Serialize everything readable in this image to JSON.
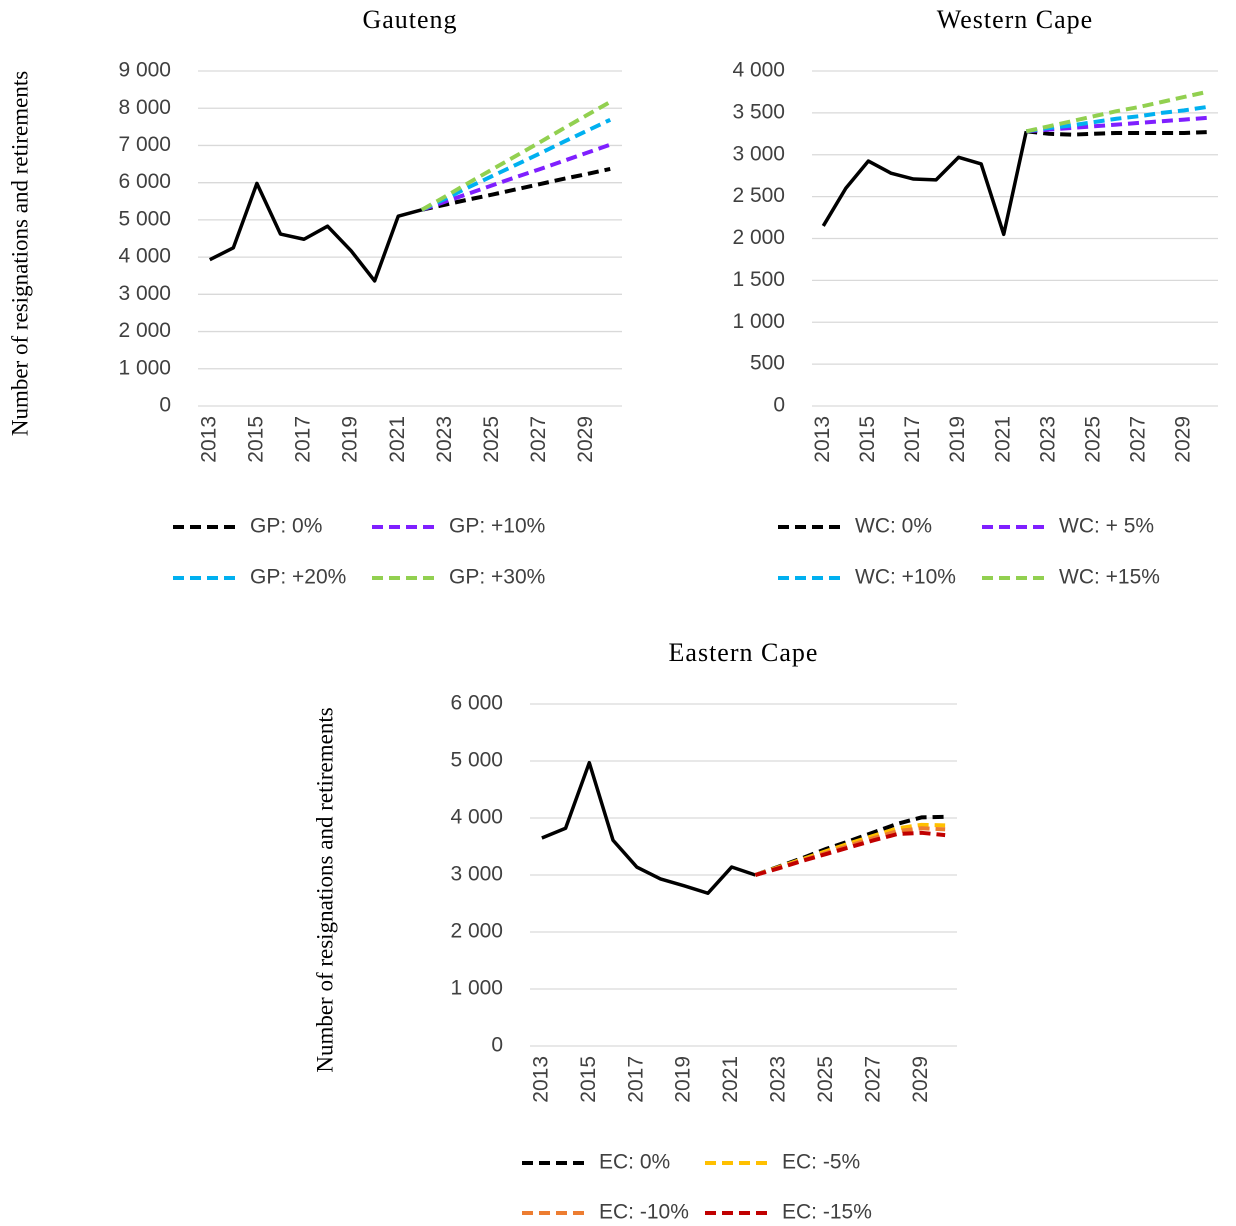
{
  "chart_data": [
    {
      "type": "line",
      "title": "Gauteng",
      "ylabel": "Number of resignations and retirements",
      "categories": [
        "2013",
        null,
        "2015",
        null,
        "2017",
        null,
        "2019",
        null,
        "2021",
        null,
        "2023",
        null,
        "2025",
        null,
        "2027",
        null,
        "2029",
        null
      ],
      "ylim": [
        0,
        9000
      ],
      "yticks": [
        0,
        {
          "value": 1000,
          "label": "1 000"
        },
        {
          "value": 2000,
          "label": "2 000"
        },
        {
          "value": 3000,
          "label": "3 000"
        },
        {
          "value": 4000,
          "label": "4 000"
        },
        {
          "value": 5000,
          "label": "5 000"
        },
        {
          "value": 6000,
          "label": "6 000"
        },
        {
          "value": 7000,
          "label": "7 000"
        },
        {
          "value": 8000,
          "label": "8 000"
        },
        {
          "value": 9000,
          "label": "9 000"
        }
      ],
      "grid": true,
      "series": [
        {
          "color": "#000000",
          "values": [
            3930,
            4250,
            5980,
            4620,
            4480,
            4830,
            4170,
            3360,
            5100,
            5270,
            null,
            null,
            null,
            null,
            null,
            null,
            null,
            null
          ]
        },
        {
          "name": "GP: 0%",
          "color": "#000000",
          "values": [
            null,
            null,
            null,
            null,
            null,
            null,
            null,
            null,
            null,
            5270,
            5410,
            5550,
            5680,
            5820,
            5960,
            6100,
            6230,
            6370
          ]
        },
        {
          "name": "GP: +10%",
          "color": "#7f1fff",
          "values": [
            null,
            null,
            null,
            null,
            null,
            null,
            null,
            null,
            null,
            5270,
            5490,
            5710,
            5930,
            6150,
            6360,
            6580,
            6800,
            7020
          ]
        },
        {
          "name": "GP: +20%",
          "color": "#00b0f0",
          "values": [
            null,
            null,
            null,
            null,
            null,
            null,
            null,
            null,
            null,
            5270,
            5570,
            5880,
            6180,
            6480,
            6780,
            7090,
            7390,
            7690
          ]
        },
        {
          "name": "GP: +30%",
          "color": "#92d050",
          "values": [
            null,
            null,
            null,
            null,
            null,
            null,
            null,
            null,
            null,
            5270,
            5630,
            6000,
            6360,
            6720,
            7080,
            7450,
            7810,
            8170
          ]
        }
      ]
    },
    {
      "type": "line",
      "title": "Western Cape",
      "categories": [
        "2013",
        null,
        "2015",
        null,
        "2017",
        null,
        "2019",
        null,
        "2021",
        null,
        "2023",
        null,
        "2025",
        null,
        "2027",
        null,
        "2029",
        null
      ],
      "ylim": [
        0,
        4000
      ],
      "yticks": [
        0,
        500,
        {
          "value": 1000,
          "label": "1 000"
        },
        {
          "value": 1500,
          "label": "1 500"
        },
        {
          "value": 2000,
          "label": "2 000"
        },
        {
          "value": 2500,
          "label": "2 500"
        },
        {
          "value": 3000,
          "label": "3 000"
        },
        {
          "value": 3500,
          "label": "3 500"
        },
        {
          "value": 4000,
          "label": "4 000"
        }
      ],
      "grid": true,
      "series": [
        {
          "color": "#000000",
          "values": [
            2150,
            2600,
            2925,
            2780,
            2710,
            2700,
            2970,
            2890,
            2050,
            3280,
            null,
            null,
            null,
            null,
            null,
            null,
            null,
            null
          ]
        },
        {
          "name": "WC: 0%",
          "color": "#000000",
          "values": [
            null,
            null,
            null,
            null,
            null,
            null,
            null,
            null,
            null,
            3280,
            3250,
            3240,
            3250,
            3260,
            3260,
            3260,
            3260,
            3270
          ]
        },
        {
          "name": "WC: + 5%",
          "color": "#7f1fff",
          "values": [
            null,
            null,
            null,
            null,
            null,
            null,
            null,
            null,
            null,
            3280,
            3300,
            3320,
            3340,
            3360,
            3380,
            3400,
            3420,
            3440
          ]
        },
        {
          "name": "WC: +10%",
          "color": "#00b0f0",
          "values": [
            null,
            null,
            null,
            null,
            null,
            null,
            null,
            null,
            null,
            3280,
            3320,
            3350,
            3390,
            3430,
            3460,
            3500,
            3530,
            3570
          ]
        },
        {
          "name": "WC: +15%",
          "color": "#92d050",
          "values": [
            null,
            null,
            null,
            null,
            null,
            null,
            null,
            null,
            null,
            3280,
            3340,
            3400,
            3460,
            3520,
            3570,
            3630,
            3690,
            3750
          ]
        }
      ]
    },
    {
      "type": "line",
      "title": "Eastern Cape",
      "ylabel": "Number of resignations and retirements",
      "categories": [
        "2013",
        null,
        "2015",
        null,
        "2017",
        null,
        "2019",
        null,
        "2021",
        null,
        "2023",
        null,
        "2025",
        null,
        "2027",
        null,
        "2029",
        null
      ],
      "ylim": [
        0,
        6000
      ],
      "yticks": [
        0,
        {
          "value": 1000,
          "label": "1 000"
        },
        {
          "value": 2000,
          "label": "2 000"
        },
        {
          "value": 3000,
          "label": "3 000"
        },
        {
          "value": 4000,
          "label": "4 000"
        },
        {
          "value": 5000,
          "label": "5 000"
        },
        {
          "value": 6000,
          "label": "6 000"
        }
      ],
      "grid": true,
      "series": [
        {
          "color": "#000000",
          "values": [
            3650,
            3820,
            4970,
            3610,
            3140,
            2930,
            2810,
            2680,
            3140,
            3000,
            null,
            null,
            null,
            null,
            null,
            null,
            null,
            null
          ]
        },
        {
          "name": "EC: 0%",
          "color": "#000000",
          "values": [
            null,
            null,
            null,
            null,
            null,
            null,
            null,
            null,
            null,
            3000,
            3150,
            3300,
            3460,
            3600,
            3750,
            3900,
            4010,
            4020
          ]
        },
        {
          "name": "EC: -5%",
          "color": "#ffc000",
          "values": [
            null,
            null,
            null,
            null,
            null,
            null,
            null,
            null,
            null,
            3000,
            3140,
            3280,
            3420,
            3560,
            3690,
            3820,
            3880,
            3870
          ]
        },
        {
          "name": "EC: -10%",
          "color": "#ed7d31",
          "values": [
            null,
            null,
            null,
            null,
            null,
            null,
            null,
            null,
            null,
            3000,
            3130,
            3260,
            3390,
            3520,
            3650,
            3770,
            3820,
            3800
          ]
        },
        {
          "name": "EC: -15%",
          "color": "#c00000",
          "values": [
            null,
            null,
            null,
            null,
            null,
            null,
            null,
            null,
            null,
            3000,
            3120,
            3250,
            3370,
            3490,
            3610,
            3720,
            3740,
            3700
          ]
        }
      ]
    }
  ]
}
